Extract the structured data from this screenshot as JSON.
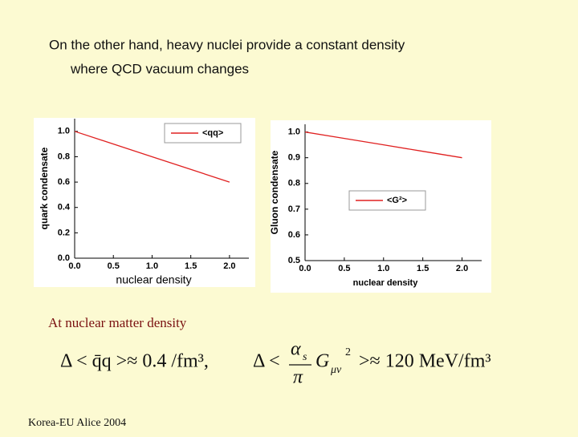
{
  "slide": {
    "title_line1": "On the other hand, heavy nuclei provide a constant density",
    "title_line2": "where QCD vacuum changes",
    "caption": "At nuclear matter density",
    "formula_left": "Δ < q̄q >≈ 0.4 /fm³,",
    "formula_right_prefix": "Δ <",
    "formula_alpha": "α",
    "formula_alpha_sub": "s",
    "formula_pi": "π",
    "formula_g": "G",
    "formula_g_sub": "μν",
    "formula_g_sup": "2",
    "formula_right_suffix": ">≈ 120 MeV/fm³",
    "footer": "Korea-EU Alice 2004"
  },
  "chart_data": [
    {
      "type": "line",
      "x_label": "nuclear density",
      "y_label": "quark condensate",
      "x": [
        0,
        0.5,
        1.0,
        1.5,
        2.0
      ],
      "legend": "upper right",
      "series": [
        {
          "name": "<qq>",
          "color": "#e02020",
          "values": [
            1.0,
            0.9,
            0.8,
            0.7,
            0.6
          ]
        }
      ],
      "xlim": [
        0,
        2.25
      ],
      "ylim": [
        0,
        1.1
      ],
      "xticks": [
        {
          "value": 0,
          "label": "0.0"
        },
        0.5,
        {
          "value": 1,
          "label": "1.0"
        },
        1.5,
        {
          "value": 2,
          "label": "2.0"
        }
      ],
      "yticks": [
        {
          "value": 0,
          "label": "0.0"
        },
        0.2,
        0.4,
        0.6,
        0.8,
        {
          "value": 1,
          "label": "1.0"
        }
      ]
    },
    {
      "type": "line",
      "x_label": "nuclear density",
      "y_label": "Gluon condensate",
      "x": [
        0,
        0.5,
        1.0,
        1.5,
        2.0
      ],
      "legend": "center right",
      "series": [
        {
          "name": "<G²>",
          "color": "#e02020",
          "values": [
            1.0,
            0.975,
            0.95,
            0.925,
            0.9
          ]
        }
      ],
      "xlim": [
        0,
        2.25
      ],
      "ylim": [
        0.5,
        1.03
      ],
      "xticks": [
        {
          "value": 0,
          "label": "0.0"
        },
        0.5,
        {
          "value": 1,
          "label": "1.0"
        },
        1.5,
        {
          "value": 2,
          "label": "2.0"
        }
      ],
      "yticks": [
        0.5,
        0.6,
        0.7,
        0.8,
        0.9,
        {
          "value": 1,
          "label": "1.0"
        }
      ]
    }
  ]
}
